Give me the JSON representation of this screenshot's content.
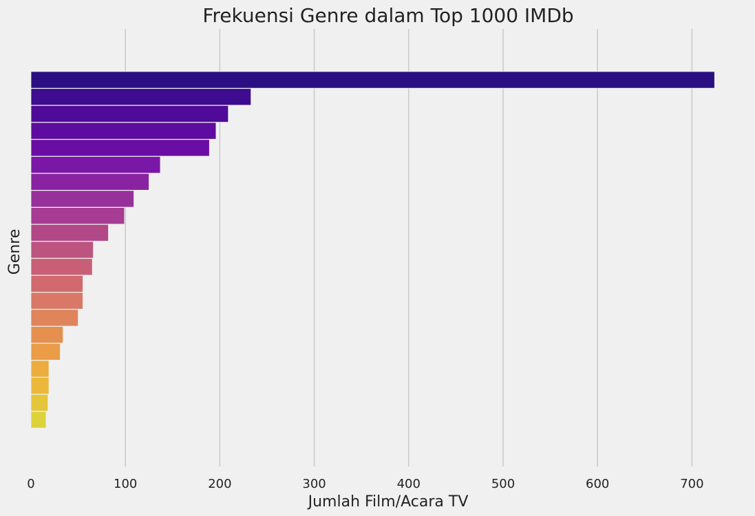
{
  "chart_data": {
    "type": "bar",
    "orientation": "horizontal",
    "title": "Frekuensi Genre dalam Top 1000 IMDb",
    "xlabel": "Jumlah Film/Acara TV",
    "ylabel": "Genre",
    "xlim": [
      0,
      750
    ],
    "xticks": [
      "0",
      "100",
      "200",
      "300",
      "400",
      "500",
      "600",
      "700"
    ],
    "xtick_values": [
      0,
      100,
      200,
      300,
      400,
      500,
      600,
      700
    ],
    "grid": "vertical",
    "values": [
      724,
      233,
      209,
      196,
      189,
      137,
      125,
      109,
      99,
      82,
      66,
      65,
      55,
      55,
      50,
      34,
      31,
      19,
      19,
      18,
      16
    ],
    "colors": [
      "#2b0f82",
      "#3d0c8f",
      "#4f0b98",
      "#5e0ca0",
      "#6a0da5",
      "#7a17a6",
      "#8a23a2",
      "#98309c",
      "#a63c93",
      "#b34888",
      "#bd5480",
      "#c85f77",
      "#d16a6e",
      "#d97866",
      "#e0845c",
      "#e6904f",
      "#ea9c47",
      "#edac3e",
      "#ecb83a",
      "#e5c53a",
      "#dcd23a"
    ]
  }
}
